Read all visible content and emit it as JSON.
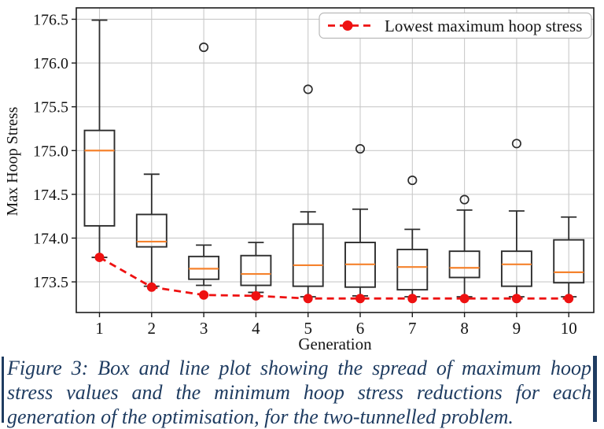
{
  "figure": {
    "ylabel": "Max Hoop Stress",
    "xlabel": "Generation",
    "legend_label": "Lowest maximum hoop stress"
  },
  "chart_data": {
    "type": "box",
    "title": "",
    "xlabel": "Generation",
    "ylabel": "Max Hoop Stress",
    "categories": [
      "1",
      "2",
      "3",
      "4",
      "5",
      "6",
      "7",
      "8",
      "9",
      "10"
    ],
    "ylim": [
      173.15,
      176.63
    ],
    "yticks": [
      173.5,
      174.0,
      174.5,
      175.0,
      175.5,
      176.0,
      176.5
    ],
    "ytick_labels": [
      "173.5",
      "174.0",
      "174.5",
      "175.0",
      "175.5",
      "176.0",
      "176.5"
    ],
    "grid": true,
    "legend_position": "upper right",
    "boxes": [
      {
        "gen": 1,
        "whisker_low": 173.78,
        "q1": 174.14,
        "median": 175.0,
        "q3": 175.23,
        "whisker_high": 176.49,
        "outliers": []
      },
      {
        "gen": 2,
        "whisker_low": 173.45,
        "q1": 173.9,
        "median": 173.96,
        "q3": 174.27,
        "whisker_high": 174.73,
        "outliers": []
      },
      {
        "gen": 3,
        "whisker_low": 173.46,
        "q1": 173.53,
        "median": 173.65,
        "q3": 173.79,
        "whisker_high": 173.92,
        "outliers": [
          176.18
        ]
      },
      {
        "gen": 4,
        "whisker_low": 173.38,
        "q1": 173.46,
        "median": 173.59,
        "q3": 173.8,
        "whisker_high": 173.95,
        "outliers": []
      },
      {
        "gen": 5,
        "whisker_low": 173.33,
        "q1": 173.45,
        "median": 173.69,
        "q3": 174.16,
        "whisker_high": 174.3,
        "outliers": [
          175.7
        ]
      },
      {
        "gen": 6,
        "whisker_low": 173.34,
        "q1": 173.44,
        "median": 173.7,
        "q3": 173.95,
        "whisker_high": 174.33,
        "outliers": [
          175.02
        ]
      },
      {
        "gen": 7,
        "whisker_low": 173.33,
        "q1": 173.41,
        "median": 173.67,
        "q3": 173.87,
        "whisker_high": 174.1,
        "outliers": [
          174.66
        ]
      },
      {
        "gen": 8,
        "whisker_low": 173.33,
        "q1": 173.55,
        "median": 173.66,
        "q3": 173.85,
        "whisker_high": 174.32,
        "outliers": [
          174.44
        ]
      },
      {
        "gen": 9,
        "whisker_low": 173.33,
        "q1": 173.45,
        "median": 173.7,
        "q3": 173.85,
        "whisker_high": 174.31,
        "outliers": [
          175.08
        ]
      },
      {
        "gen": 10,
        "whisker_low": 173.33,
        "q1": 173.49,
        "median": 173.61,
        "q3": 173.98,
        "whisker_high": 174.24,
        "outliers": []
      }
    ],
    "line_series": {
      "name": "Lowest maximum hoop stress",
      "values": [
        173.78,
        173.44,
        173.35,
        173.34,
        173.31,
        173.31,
        173.31,
        173.31,
        173.31,
        173.31
      ]
    },
    "colors": {
      "box_edge": "#2d2d2d",
      "median": "#f5822d",
      "line": "#ee1111",
      "grid": "#c9c9c9",
      "spine": "#1c1c1c"
    }
  },
  "caption": {
    "lines": [
      "Figure 3: Box and line plot showing the spread of maximum hoop",
      "stress values and the minimum hoop stress reductions for each",
      "generation of the optimisation, for the two-tunnelled problem."
    ],
    "text_color": "#1f3c61"
  }
}
